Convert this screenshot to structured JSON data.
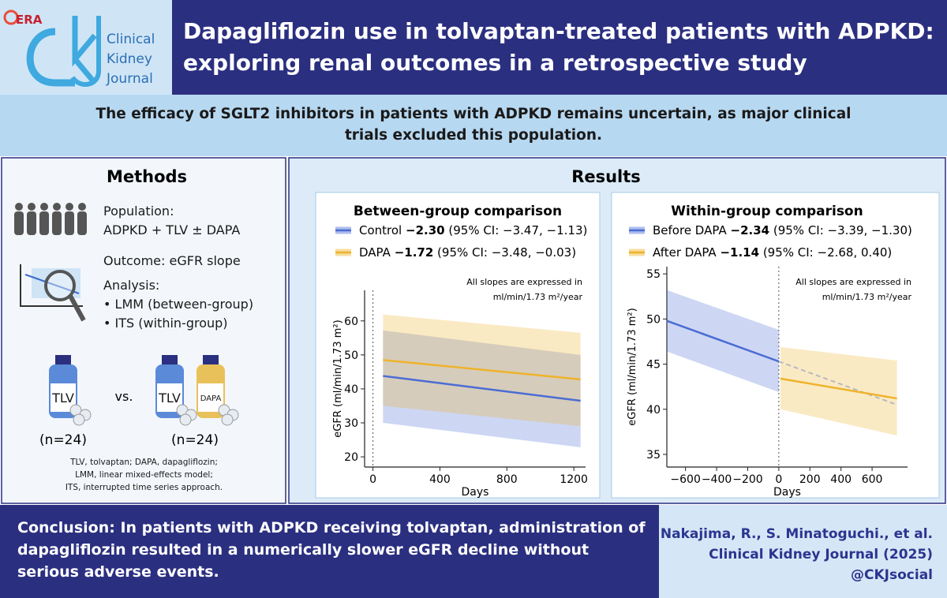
{
  "header": {
    "logo_badge": "ERA",
    "journal_lines": [
      "Clinical",
      "Kidney",
      "Journal"
    ],
    "title": "Dapagliflozin use in tolvaptan-treated patients with ADPKD: exploring renal outcomes in a retrospective study"
  },
  "background": "The efficacy of SGLT2 inhibitors in patients with ADPKD remains uncertain, as major clinical trials excluded this population.",
  "methods": {
    "title": "Methods",
    "population_label": "Population:",
    "population": "ADPKD + TLV ± DAPA",
    "outcome": "Outcome: eGFR slope",
    "analysis_label": "Analysis:",
    "analysis_items": [
      "LMM (between-group)",
      "ITS (within-group)"
    ],
    "groups": [
      {
        "bottles": [
          "TLV"
        ],
        "n": "(n=24)"
      },
      {
        "bottles": [
          "TLV",
          "DAPA"
        ],
        "n": "(n=24)"
      }
    ],
    "versus": "vs.",
    "footnote_lines": [
      "TLV, tolvaptan; DAPA, dapagliflozin;",
      "LMM, linear mixed-effects model;",
      "ITS, interrupted time series approach."
    ]
  },
  "results_title": "Results",
  "chart_data": [
    {
      "type": "line",
      "title": "Between-group comparison",
      "note_lines": [
        "All slopes are expressed in",
        "ml/min/1.73 m²/year"
      ],
      "xlabel": "Days",
      "ylabel": "eGFR (ml/min/1.73 m²)",
      "xlim": [
        -50,
        1270
      ],
      "ylim": [
        17,
        69
      ],
      "xticks": [
        0,
        400,
        800,
        1200
      ],
      "yticks": [
        20,
        30,
        40,
        50,
        60
      ],
      "marker_x": 0,
      "series": [
        {
          "name": "Control",
          "slope": "−2.30",
          "ci": "(95% CI: −3.47, −1.13)",
          "color": "#4a6cd4",
          "x": [
            60,
            1240
          ],
          "values": [
            43.8,
            36.5
          ],
          "lower": [
            30,
            22.8
          ],
          "upper": [
            57.2,
            50
          ]
        },
        {
          "name": "DAPA",
          "slope": "−1.72",
          "ci": "(95% CI: −3.48, −0.03)",
          "color": "#eeb32b",
          "x": [
            60,
            1240
          ],
          "values": [
            48.5,
            42.8
          ],
          "lower": [
            35,
            29
          ],
          "upper": [
            61.9,
            56.5
          ]
        }
      ]
    },
    {
      "type": "line",
      "title": "Within-group comparison",
      "note_lines": [
        "All slopes are expressed in",
        "ml/min/1.73 m²/year"
      ],
      "xlabel": "Days",
      "ylabel": "eGFR (ml/min/1.73 m²)",
      "xlim": [
        -720,
        828
      ],
      "ylim": [
        33.6,
        55.8
      ],
      "xticks": [
        {
          "value": -600,
          "label": "−600"
        },
        {
          "value": -400,
          "label": "−400"
        },
        {
          "value": -200,
          "label": "−200"
        },
        0,
        200,
        400,
        600
      ],
      "yticks": [
        35,
        40,
        45,
        50,
        55
      ],
      "marker_x": 0,
      "series": [
        {
          "name": "Before DAPA",
          "slope": "−2.34",
          "ci": "(95% CI: −3.39, −1.30)",
          "color": "#4a6cd4",
          "x": [
            -720,
            0
          ],
          "values": [
            49.8,
            45.3
          ],
          "lower": [
            46.4,
            41.9
          ],
          "upper": [
            53.2,
            48.8
          ]
        },
        {
          "name": "After DAPA",
          "slope": "−1.14",
          "ci": "(95% CI: −2.68, 0.40)",
          "color": "#eeb32b",
          "x": [
            10,
            760
          ],
          "values": [
            43.4,
            41.2
          ],
          "lower": [
            40,
            37.1
          ],
          "upper": [
            46.9,
            45.4
          ]
        }
      ],
      "counterfactual": {
        "x": [
          0,
          760
        ],
        "values": [
          45.3,
          40.5
        ],
        "color": "#b8b8c0"
      }
    }
  ],
  "conclusion": "Conclusion: In patients with ADPKD receiving tolvaptan, administration of dapagliflozin resulted in a numerically slower eGFR decline without serious adverse events.",
  "citation_lines": [
    "Nakajima, R., S. Minatoguchi., et al.",
    "Clinical Kidney Journal (2025)",
    "@CKJsocial"
  ]
}
